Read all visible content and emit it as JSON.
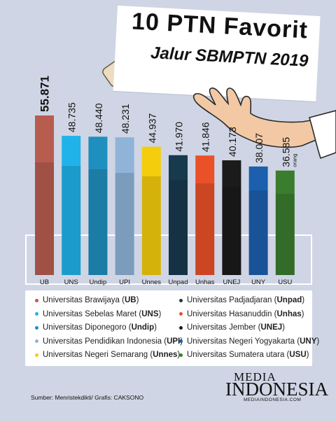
{
  "header": {
    "title": "10 PTN Favorit",
    "subtitle": "Jalur SBMPTN 2019"
  },
  "chart_data": {
    "type": "bar",
    "title": "10 PTN Favorit",
    "subtitle": "Jalur SBMPTN 2019",
    "categories": [
      "UB",
      "UNS",
      "Undip",
      "UPI",
      "Unnes",
      "Unpad",
      "Unhas",
      "UNEJ",
      "UNY",
      "USU"
    ],
    "values": [
      55871,
      48735,
      48440,
      48231,
      44937,
      41970,
      41846,
      40173,
      38007,
      36585
    ],
    "value_labels": [
      "55.871",
      "48.735",
      "48.440",
      "48.231",
      "44.937",
      "41.970",
      "41.846",
      "40.173",
      "38.007",
      "36.585"
    ],
    "unit_label": "orang",
    "colors": [
      "#b85c50",
      "#1fb3ea",
      "#1f8fbf",
      "#8fb4d8",
      "#f4cd0c",
      "#173a4e",
      "#ea5129",
      "#1b1b1b",
      "#1c5fae",
      "#3a7d2e"
    ],
    "ylim": [
      0,
      58000
    ],
    "legend": [
      {
        "name": "Universitas Brawijaya",
        "abbr": "UB"
      },
      {
        "name": "Universitas Sebelas Maret",
        "abbr": "UNS"
      },
      {
        "name": "Universitas Diponegoro",
        "abbr": "Undip"
      },
      {
        "name": "Universitas Pendidikan Indonesia",
        "abbr": "UPI"
      },
      {
        "name": "Universitas Negeri Semarang",
        "abbr": "Unnes"
      },
      {
        "name": "Universitas Padjadjaran",
        "abbr": "Unpad"
      },
      {
        "name": "Universitas Hasanuddin",
        "abbr": "Unhas"
      },
      {
        "name": "Universitas Jember",
        "abbr": "UNEJ"
      },
      {
        "name": "Universitas Negeri Yogyakarta",
        "abbr": "UNY"
      },
      {
        "name": "Universitas Sumatera utara",
        "abbr": "USU"
      }
    ]
  },
  "footer": {
    "source": "Sumber: Menristekdikti/ Grafis: CAKSONO",
    "brand_top": "MEDIA",
    "brand_main": "INDONESIA",
    "brand_url": "MEDIAINDONESIA.COM"
  }
}
